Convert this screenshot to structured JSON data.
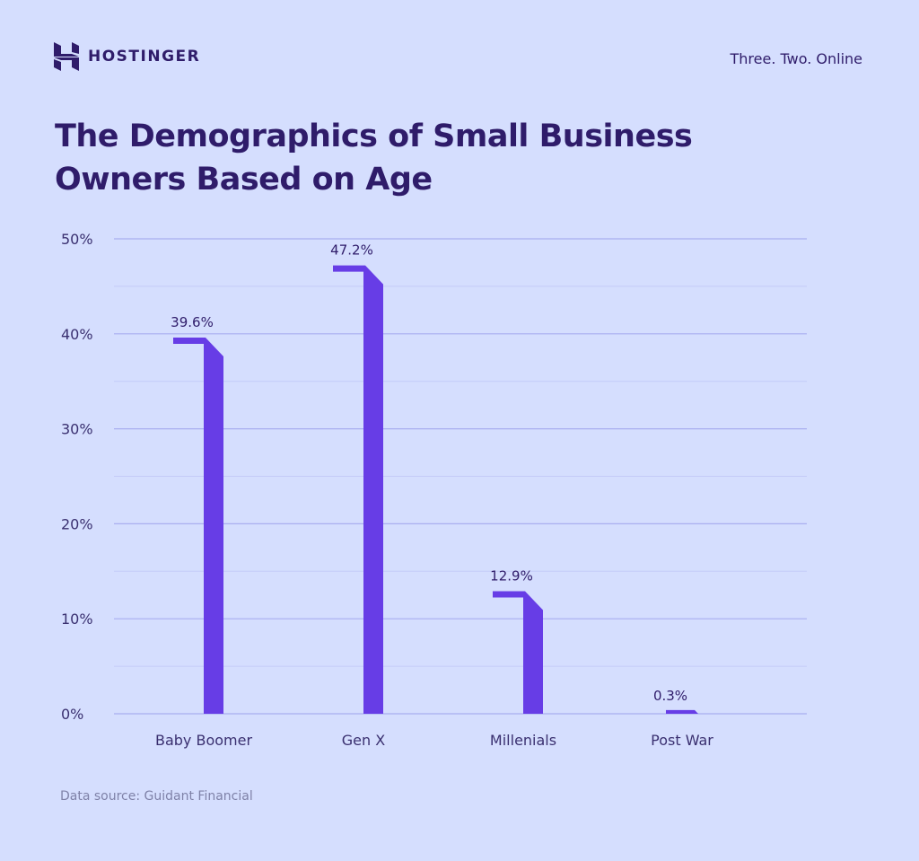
{
  "header": {
    "brand": "HOSTINGER",
    "tagline": "Three. Two. Online"
  },
  "chart_data": {
    "type": "bar",
    "title": "The Demographics of Small Business Owners Based on Age",
    "categories": [
      "Baby Boomer",
      "Gen X",
      "Millenials",
      "Post War"
    ],
    "values": [
      39.6,
      47.2,
      12.9,
      0.3
    ],
    "data_labels": [
      "39.6%",
      "47.2%",
      "12.9%",
      "0.3%"
    ],
    "yticks": [
      "0%",
      "10%",
      "20%",
      "30%",
      "40%",
      "50%"
    ],
    "ylim": [
      0,
      50
    ],
    "grid": true,
    "bar_color": "#673de6"
  },
  "footer": {
    "source": "Data source: Guidant Financial"
  }
}
